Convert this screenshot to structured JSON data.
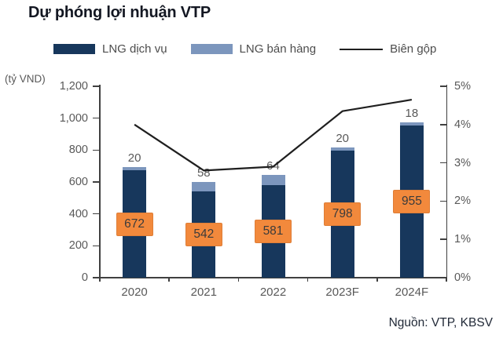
{
  "title": "Dự phóng lợi nhuận VTP",
  "source_note": "Nguồn: VTP, KBSV",
  "legend": {
    "items": [
      {
        "label": "LNG dịch vụ",
        "swatch": "navy-rect",
        "color": "#17375c"
      },
      {
        "label": "LNG bán hàng",
        "swatch": "steel-rect",
        "color": "#7c96bd"
      },
      {
        "label": "Biên gộp",
        "swatch": "black-line",
        "color": "#1f1f1f"
      }
    ]
  },
  "colors": {
    "bar_primary": "#17375c",
    "bar_secondary": "#7c96bd",
    "line": "#1f1f1f",
    "label_box": "#f2893c",
    "label_box_text": "#3b3b3b",
    "axis_text": "#595959",
    "title_text": "#131722"
  },
  "chart_data": {
    "type": "combo",
    "categories": [
      "2020",
      "2021",
      "2022",
      "2023F",
      "2024F"
    ],
    "series": [
      {
        "name": "LNG dịch vụ",
        "type": "bar",
        "stacked": true,
        "axis": "left",
        "color": "#17375c",
        "values": [
          672,
          542,
          581,
          798,
          955
        ],
        "labels_in_orange_box": true
      },
      {
        "name": "LNG bán hàng",
        "type": "bar",
        "stacked": true,
        "axis": "left",
        "color": "#7c96bd",
        "values": [
          20,
          58,
          64,
          20,
          18
        ],
        "labels_above_bar": true
      },
      {
        "name": "Biên gộp",
        "type": "line",
        "axis": "right",
        "color": "#1f1f1f",
        "values": [
          4.0,
          2.8,
          2.9,
          4.35,
          4.65
        ],
        "unit": "%"
      }
    ],
    "left_axis": {
      "title": "(tỷ VND)",
      "min": 0,
      "max": 1200,
      "step": 200,
      "tick_labels": [
        "0",
        "200",
        "400",
        "600",
        "800",
        "1,000",
        "1,200"
      ]
    },
    "right_axis": {
      "min": 0,
      "max": 5,
      "step": 1,
      "tick_labels": [
        "0%",
        "1%",
        "2%",
        "3%",
        "4%",
        "5%"
      ]
    },
    "grid": false,
    "legend_position": "top"
  }
}
